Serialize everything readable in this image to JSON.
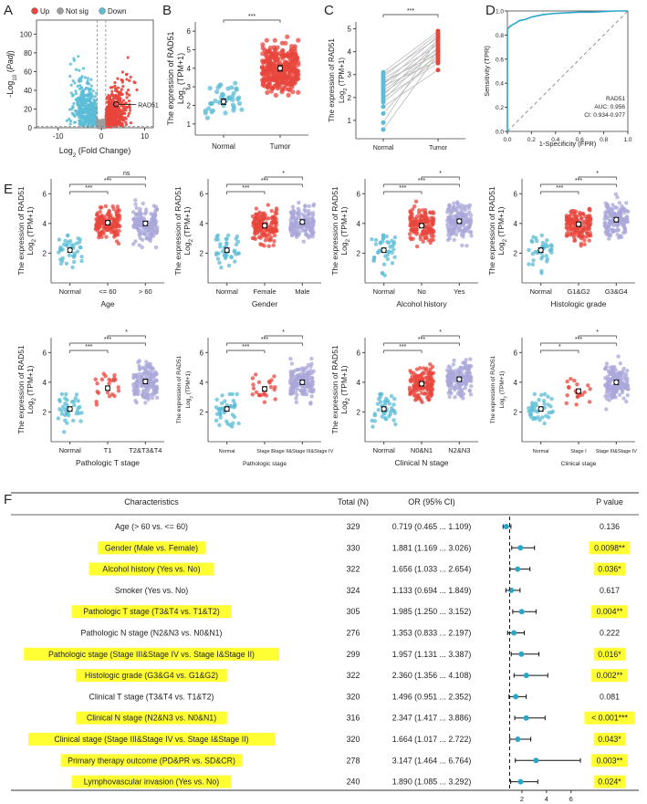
{
  "panels": {
    "A": {
      "letter": "A",
      "chart_data": {
        "type": "scatter",
        "legend": [
          "Up",
          "Not sig",
          "Down"
        ],
        "legend_colors": [
          "#e8453c",
          "#9e9e9e",
          "#5bbcd6"
        ],
        "legend_placement": "top",
        "ylabel_parts": [
          "-Log",
          "10",
          " (",
          "Padj",
          ")"
        ],
        "xlabel_parts": [
          "Log",
          "2",
          " (Fold Change)"
        ],
        "xlim": [
          -15,
          12
        ],
        "ylim": [
          0,
          115
        ],
        "xticks": [
          -10,
          0,
          10
        ],
        "yticks": [
          0,
          20,
          40,
          60,
          80,
          100
        ],
        "vlines": [
          -1,
          1
        ],
        "hline": 1.3,
        "highlight": {
          "label": "RAD51",
          "x": 3.4,
          "y": 25
        }
      }
    },
    "B": {
      "letter": "B",
      "chart_data": {
        "type": "scatter",
        "categories": [
          "Normal",
          "Tumor"
        ],
        "ylim": [
          0.4,
          6.5
        ],
        "yticks": [
          1,
          2,
          3,
          4,
          5,
          6
        ],
        "ylabel_line1": "The expression of RAD51",
        "ylabel_line2_parts": [
          "Log",
          "2",
          " (TPM+1)"
        ],
        "means": [
          2.2,
          4.0
        ],
        "sig": "***",
        "colors": [
          "#5bbcd6",
          "#e8453c"
        ]
      }
    },
    "C": {
      "letter": "C",
      "chart_data": {
        "type": "line",
        "categories": [
          "Normal",
          "Tumor"
        ],
        "ylim": [
          0.2,
          5.3
        ],
        "yticks": [
          1,
          2,
          3,
          4,
          5
        ],
        "ylabel_line1": "The expression of RAD51",
        "ylabel_line2_parts": [
          "Log",
          "2",
          " (TPM+1)"
        ],
        "sig": "***",
        "pairs_normal": [
          3.1,
          3.0,
          2.9,
          2.8,
          2.7,
          2.6,
          2.6,
          2.5,
          2.4,
          2.3,
          2.2,
          2.1,
          2.0,
          1.9,
          1.8,
          1.6,
          1.3,
          0.9,
          0.6
        ],
        "pairs_tumor": [
          4.9,
          4.6,
          4.8,
          4.3,
          3.9,
          4.7,
          4.1,
          3.6,
          4.5,
          4.0,
          3.8,
          4.4,
          3.5,
          4.2,
          3.7,
          3.2,
          4.0,
          4.6,
          3.9
        ],
        "colors": [
          "#5bbcd6",
          "#e8453c"
        ]
      }
    },
    "D": {
      "letter": "D",
      "chart_data": {
        "type": "line",
        "xlabel": "1-Specificity (FPR)",
        "ylabel": "Sensitivity (TPR)",
        "xlim": [
          0,
          1
        ],
        "ylim": [
          0,
          1
        ],
        "xticks": [
          0,
          0.2,
          0.4,
          0.6,
          0.8,
          1
        ],
        "xtick_labels": [
          "0.0",
          "0.2",
          "0.4",
          "0.6",
          "0.8",
          "1.0"
        ],
        "yticks": [
          0,
          0.2,
          0.4,
          0.6,
          0.8,
          1
        ],
        "ytick_labels": [
          "0.0",
          "0.2",
          "0.4",
          "0.6",
          "0.8",
          "1.0"
        ],
        "annotation": [
          "RAD51",
          "AUC: 0.956",
          "CI: 0.934-0.977"
        ],
        "fpr": [
          0,
          0,
          0.02,
          0.05,
          0.07,
          0.1,
          0.15,
          0.2,
          0.25,
          0.3,
          0.4,
          0.5,
          0.6,
          0.7,
          0.8,
          0.9,
          1.0
        ],
        "tpr": [
          0,
          0.85,
          0.87,
          0.89,
          0.9,
          0.92,
          0.93,
          0.95,
          0.96,
          0.97,
          0.98,
          0.985,
          0.99,
          0.99,
          0.995,
          1.0,
          1.0
        ],
        "color": "#2aa6c8"
      }
    },
    "E": {
      "letter": "E",
      "subplots": [
        {
          "categories": [
            "Normal",
            "<= 60",
            "> 60"
          ],
          "xlabel": "Age",
          "ylim": [
            0,
            7
          ],
          "yticks": [
            2,
            4,
            6
          ],
          "means": [
            2.2,
            4.05,
            4.0
          ],
          "sig": [
            "***",
            "***",
            "ns"
          ],
          "small": false
        },
        {
          "categories": [
            "Normal",
            "Female",
            "Male"
          ],
          "xlabel": "Gender",
          "ylim": [
            0,
            7
          ],
          "yticks": [
            2,
            4,
            6
          ],
          "means": [
            2.2,
            3.85,
            4.1
          ],
          "sig": [
            "***",
            "***",
            "*"
          ],
          "small": false
        },
        {
          "categories": [
            "Normal",
            "No",
            "Yes"
          ],
          "xlabel": "Alcohol history",
          "ylim": [
            0,
            7
          ],
          "yticks": [
            2,
            4,
            6
          ],
          "means": [
            2.2,
            3.85,
            4.15
          ],
          "sig": [
            "***",
            "***",
            "*"
          ],
          "small": false
        },
        {
          "categories": [
            "Normal",
            "G1&G2",
            "G3&G4"
          ],
          "xlabel": "Histologic grade",
          "ylim": [
            0,
            7
          ],
          "yticks": [
            2,
            4,
            6
          ],
          "means": [
            2.2,
            3.95,
            4.25
          ],
          "sig": [
            "***",
            "***",
            "*"
          ],
          "small": false
        },
        {
          "categories": [
            "Normal",
            "T1",
            "T2&T3&T4"
          ],
          "xlabel": "Pathologic T stage",
          "ylim": [
            0,
            7
          ],
          "yticks": [
            2,
            4,
            6
          ],
          "means": [
            2.2,
            3.6,
            4.05
          ],
          "sig": [
            "***",
            "***",
            "*"
          ],
          "small": false
        },
        {
          "categories": [
            "Normal",
            "Stage I",
            "Stage II&Stage III&Stage IV"
          ],
          "xlabel": "Pathologic stage",
          "ylim": [
            0,
            7
          ],
          "yticks": [
            2,
            4,
            6
          ],
          "means": [
            2.2,
            3.55,
            4.0
          ],
          "sig": [
            "***",
            "***",
            "*"
          ],
          "small": true
        },
        {
          "categories": [
            "Normal",
            "N0&N1",
            "N2&N3"
          ],
          "xlabel": "Clinical N stage",
          "ylim": [
            0,
            7
          ],
          "yticks": [
            2,
            4,
            6
          ],
          "means": [
            2.2,
            3.9,
            4.2
          ],
          "sig": [
            "***",
            "***",
            "*"
          ],
          "small": false
        },
        {
          "categories": [
            "Normal",
            "Stage I",
            "Stage III&Stage IV"
          ],
          "xlabel": "Clinical stage",
          "ylim": [
            0,
            7
          ],
          "yticks": [
            2,
            4,
            6
          ],
          "means": [
            2.2,
            3.4,
            4.0
          ],
          "sig": [
            "*",
            "***",
            "*"
          ],
          "small": true
        }
      ],
      "ylabel_line1": "The expression of RAD51",
      "ylabel_line2_parts": [
        "Log",
        "2",
        " (TPM+1)"
      ],
      "colors": [
        "#5bbcd6",
        "#e8453c",
        "#a9a7d9"
      ]
    },
    "F": {
      "letter": "F",
      "headers": [
        "Characteristics",
        "Total (N)",
        "OR (95% CI)",
        "P value"
      ],
      "rows": [
        {
          "label": "Age (> 60 vs. <= 60)",
          "n": "329",
          "or_text": "0.719 (0.465 ... 1.109)",
          "p": "0.136",
          "or": 0.719,
          "lo": 0.465,
          "hi": 1.109,
          "highlight": false
        },
        {
          "label": "Gender (Male vs. Female)",
          "n": "330",
          "or_text": "1.881 (1.169 ... 3.026)",
          "p": "0.0098**",
          "or": 1.881,
          "lo": 1.169,
          "hi": 3.026,
          "highlight": true
        },
        {
          "label": "Alcohol history (Yes vs. No)",
          "n": "322",
          "or_text": "1.656 (1.033 ... 2.654)",
          "p": "0.036*",
          "or": 1.656,
          "lo": 1.033,
          "hi": 2.654,
          "highlight": true
        },
        {
          "label": "Smoker (Yes vs. No)",
          "n": "324",
          "or_text": "1.133 (0.694 ... 1.849)",
          "p": "0.617",
          "or": 1.133,
          "lo": 0.694,
          "hi": 1.849,
          "highlight": false
        },
        {
          "label": "Pathologic T stage (T3&T4 vs. T1&T2)",
          "n": "305",
          "or_text": "1.985 (1.250 ... 3.152)",
          "p": "0.004**",
          "or": 1.985,
          "lo": 1.25,
          "hi": 3.152,
          "highlight": true
        },
        {
          "label": "Pathologic N stage (N2&N3 vs. N0&N1)",
          "n": "276",
          "or_text": "1.353 (0.833 ... 2.197)",
          "p": "0.222",
          "or": 1.353,
          "lo": 0.833,
          "hi": 2.197,
          "highlight": false
        },
        {
          "label": "Pathologic stage (Stage III&Stage IV vs. Stage I&Stage II)",
          "n": "299",
          "or_text": "1.957 (1.131 ... 3.387)",
          "p": "0.016*",
          "or": 1.957,
          "lo": 1.131,
          "hi": 3.387,
          "highlight": true
        },
        {
          "label": "Histologic grade (G3&G4 vs. G1&G2)",
          "n": "322",
          "or_text": "2.360 (1.356 ... 4.108)",
          "p": "0.002**",
          "or": 2.36,
          "lo": 1.356,
          "hi": 4.108,
          "highlight": true
        },
        {
          "label": "Clinical T stage (T3&T4 vs. T1&T2)",
          "n": "320",
          "or_text": "1.496 (0.951 ... 2.352)",
          "p": "0.081",
          "or": 1.496,
          "lo": 0.951,
          "hi": 2.352,
          "highlight": false
        },
        {
          "label": "Clinical N stage (N2&N3 vs. N0&N1)",
          "n": "316",
          "or_text": "2.347 (1.417 ... 3.886)",
          "p": "< 0.001***",
          "or": 2.347,
          "lo": 1.417,
          "hi": 3.886,
          "highlight": true
        },
        {
          "label": "Clinical stage (Stage III&Stage IV vs. Stage I&Stage II)",
          "n": "320",
          "or_text": "1.664 (1.017 ... 2.722)",
          "p": "0.043*",
          "or": 1.664,
          "lo": 1.017,
          "hi": 2.722,
          "highlight": true
        },
        {
          "label": "Primary therapy outcome (PD&PR vs. SD&CR)",
          "n": "278",
          "or_text": "3.147 (1.464 ... 6.764)",
          "p": "0.003**",
          "or": 3.147,
          "lo": 1.464,
          "hi": 6.764,
          "highlight": true
        },
        {
          "label": "Lymphovascular invasion (Yes vs. No)",
          "n": "240",
          "or_text": "1.890 (1.085 ... 3.292)",
          "p": "0.024*",
          "or": 1.89,
          "lo": 1.085,
          "hi": 3.292,
          "highlight": true
        }
      ],
      "forest": {
        "xlim": [
          0,
          7.8
        ],
        "xticks": [
          2,
          4,
          6
        ],
        "ref": 1,
        "point_color": "#2aa6c8",
        "highlight_color": "#ffff33"
      }
    }
  }
}
